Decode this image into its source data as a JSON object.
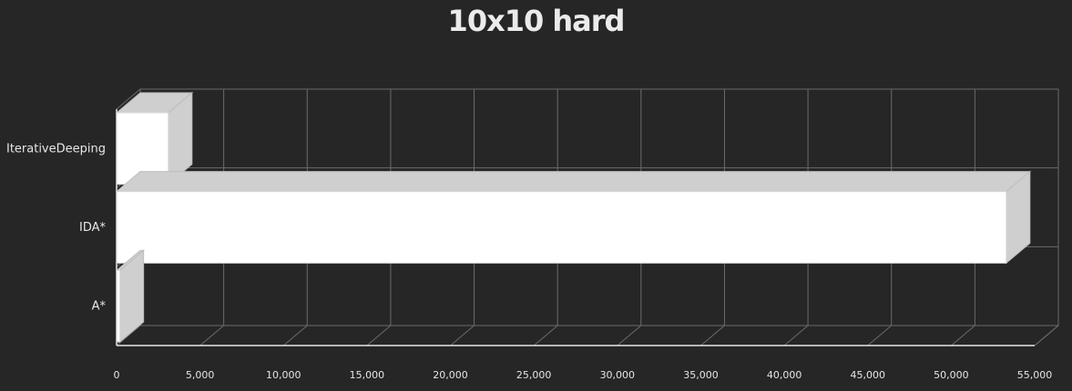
{
  "chart_data": {
    "type": "bar",
    "orientation": "horizontal",
    "title": "10x10 hard",
    "categories": [
      "IterativeDeeping",
      "IDA*",
      "A*"
    ],
    "values": [
      3100,
      53300,
      200
    ],
    "xlim": [
      0,
      55000
    ],
    "xticks": [
      "0",
      "5,000",
      "10,000",
      "15,000",
      "20,000",
      "25,000",
      "30,000",
      "35,000",
      "40,000",
      "45,000",
      "50,000",
      "55,000"
    ],
    "xlabel": "",
    "ylabel": "",
    "grid": true,
    "style": "3d-sketch",
    "colors": {
      "background": "#262626",
      "bar_front": "#ffffff",
      "bar_side": "#cfcfcf",
      "grid": "#6b6b6b",
      "text": "#e6e6e6"
    }
  }
}
